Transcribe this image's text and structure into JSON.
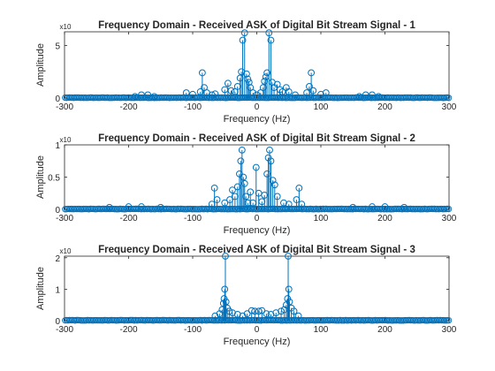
{
  "figure": {
    "background": "#ffffff",
    "plot_color": "#0072bd",
    "axis_color": "#262626"
  },
  "chart_data": [
    {
      "type": "stem",
      "title": "Frequency Domain - Received ASK of Digital Bit Stream Signal - 1",
      "xlabel": "Frequency (Hz)",
      "ylabel": "Amplitude",
      "y_exponent_label": "x10",
      "xlim": [
        -300,
        300
      ],
      "ylim": [
        0,
        6.3
      ],
      "xticks": [
        -300,
        -200,
        -100,
        0,
        100,
        200,
        300
      ],
      "yticks": [
        0,
        5
      ],
      "peaks": [
        {
          "x": -190,
          "y": 0.15
        },
        {
          "x": -180,
          "y": 0.3
        },
        {
          "x": -170,
          "y": 0.3
        },
        {
          "x": -160,
          "y": 0.15
        },
        {
          "x": -110,
          "y": 0.5
        },
        {
          "x": -100,
          "y": 0.35
        },
        {
          "x": -88,
          "y": 0.6
        },
        {
          "x": -85,
          "y": 2.4
        },
        {
          "x": -82,
          "y": 1.0
        },
        {
          "x": -78,
          "y": 0.5
        },
        {
          "x": -70,
          "y": 0.3
        },
        {
          "x": -65,
          "y": 0.4
        },
        {
          "x": -50,
          "y": 0.8
        },
        {
          "x": -45,
          "y": 1.4
        },
        {
          "x": -40,
          "y": 0.7
        },
        {
          "x": -34,
          "y": 0.6
        },
        {
          "x": -30,
          "y": 1.1
        },
        {
          "x": -26,
          "y": 1.9
        },
        {
          "x": -24,
          "y": 2.5
        },
        {
          "x": -22,
          "y": 5.5
        },
        {
          "x": -19,
          "y": 6.2
        },
        {
          "x": -16,
          "y": 2.3
        },
        {
          "x": -14,
          "y": 1.8
        },
        {
          "x": -12,
          "y": 1.5
        },
        {
          "x": -10,
          "y": 1.0
        },
        {
          "x": -6,
          "y": 0.5
        },
        {
          "x": 0,
          "y": 0.3
        },
        {
          "x": 6,
          "y": 0.5
        },
        {
          "x": 10,
          "y": 1.0
        },
        {
          "x": 12,
          "y": 1.6
        },
        {
          "x": 14,
          "y": 2.0
        },
        {
          "x": 16,
          "y": 2.4
        },
        {
          "x": 19,
          "y": 6.2
        },
        {
          "x": 22,
          "y": 5.5
        },
        {
          "x": 24,
          "y": 1.5
        },
        {
          "x": 27,
          "y": 1.0
        },
        {
          "x": 32,
          "y": 1.3
        },
        {
          "x": 36,
          "y": 0.8
        },
        {
          "x": 40,
          "y": 0.6
        },
        {
          "x": 46,
          "y": 1.0
        },
        {
          "x": 50,
          "y": 0.6
        },
        {
          "x": 60,
          "y": 0.3
        },
        {
          "x": 78,
          "y": 0.5
        },
        {
          "x": 82,
          "y": 1.1
        },
        {
          "x": 85,
          "y": 2.4
        },
        {
          "x": 88,
          "y": 0.7
        },
        {
          "x": 100,
          "y": 0.35
        },
        {
          "x": 108,
          "y": 0.5
        },
        {
          "x": 160,
          "y": 0.15
        },
        {
          "x": 170,
          "y": 0.3
        },
        {
          "x": 180,
          "y": 0.3
        },
        {
          "x": 190,
          "y": 0.15
        }
      ]
    },
    {
      "type": "stem",
      "title": "Frequency Domain - Received ASK of Digital Bit Stream Signal - 2",
      "xlabel": "Frequency (Hz)",
      "ylabel": "Amplitude",
      "y_exponent_label": "x10",
      "xlim": [
        -300,
        300
      ],
      "ylim": [
        0,
        1.0
      ],
      "xticks": [
        -300,
        -200,
        -100,
        0,
        100,
        200,
        300
      ],
      "yticks": [
        0,
        0.5,
        1
      ],
      "peaks": [
        {
          "x": -230,
          "y": 0.03
        },
        {
          "x": -200,
          "y": 0.04
        },
        {
          "x": -180,
          "y": 0.04
        },
        {
          "x": -150,
          "y": 0.03
        },
        {
          "x": -70,
          "y": 0.08
        },
        {
          "x": -66,
          "y": 0.33
        },
        {
          "x": -62,
          "y": 0.15
        },
        {
          "x": -50,
          "y": 0.1
        },
        {
          "x": -42,
          "y": 0.15
        },
        {
          "x": -38,
          "y": 0.3
        },
        {
          "x": -34,
          "y": 0.2
        },
        {
          "x": -30,
          "y": 0.35
        },
        {
          "x": -27,
          "y": 0.55
        },
        {
          "x": -25,
          "y": 0.75
        },
        {
          "x": -23,
          "y": 0.92
        },
        {
          "x": -21,
          "y": 0.5
        },
        {
          "x": -19,
          "y": 0.4
        },
        {
          "x": -17,
          "y": 0.2
        },
        {
          "x": -14,
          "y": 0.1
        },
        {
          "x": -10,
          "y": 0.27
        },
        {
          "x": -6,
          "y": 0.1
        },
        {
          "x": -1,
          "y": 0.65
        },
        {
          "x": 3,
          "y": 0.25
        },
        {
          "x": 8,
          "y": 0.12
        },
        {
          "x": 12,
          "y": 0.22
        },
        {
          "x": 16,
          "y": 0.55
        },
        {
          "x": 18,
          "y": 0.8
        },
        {
          "x": 20,
          "y": 0.92
        },
        {
          "x": 22,
          "y": 0.75
        },
        {
          "x": 25,
          "y": 0.45
        },
        {
          "x": 28,
          "y": 0.38
        },
        {
          "x": 32,
          "y": 0.2
        },
        {
          "x": 42,
          "y": 0.1
        },
        {
          "x": 50,
          "y": 0.08
        },
        {
          "x": 62,
          "y": 0.15
        },
        {
          "x": 66,
          "y": 0.33
        },
        {
          "x": 70,
          "y": 0.08
        },
        {
          "x": 150,
          "y": 0.03
        },
        {
          "x": 180,
          "y": 0.04
        },
        {
          "x": 200,
          "y": 0.04
        },
        {
          "x": 230,
          "y": 0.03
        }
      ]
    },
    {
      "type": "stem",
      "title": "Frequency Domain - Received ASK of Digital Bit Stream Signal - 3",
      "xlabel": "Frequency (Hz)",
      "ylabel": "Amplitude",
      "y_exponent_label": "x10",
      "xlim": [
        -300,
        300
      ],
      "ylim": [
        0,
        2.05
      ],
      "xticks": [
        -300,
        -200,
        -100,
        0,
        100,
        200,
        300
      ],
      "yticks": [
        0,
        1,
        2
      ],
      "peaks": [
        {
          "x": -65,
          "y": 0.15
        },
        {
          "x": -58,
          "y": 0.22
        },
        {
          "x": -54,
          "y": 0.35
        },
        {
          "x": -52,
          "y": 0.55
        },
        {
          "x": -51,
          "y": 0.7
        },
        {
          "x": -50,
          "y": 1.0
        },
        {
          "x": -49,
          "y": 2.05
        },
        {
          "x": -48,
          "y": 0.6
        },
        {
          "x": -46,
          "y": 0.4
        },
        {
          "x": -43,
          "y": 0.3
        },
        {
          "x": -38,
          "y": 0.25
        },
        {
          "x": -30,
          "y": 0.2
        },
        {
          "x": -22,
          "y": 0.15
        },
        {
          "x": -15,
          "y": 0.22
        },
        {
          "x": -8,
          "y": 0.32
        },
        {
          "x": -3,
          "y": 0.3
        },
        {
          "x": 3,
          "y": 0.3
        },
        {
          "x": 8,
          "y": 0.32
        },
        {
          "x": 15,
          "y": 0.22
        },
        {
          "x": 22,
          "y": 0.2
        },
        {
          "x": 30,
          "y": 0.25
        },
        {
          "x": 38,
          "y": 0.3
        },
        {
          "x": 43,
          "y": 0.35
        },
        {
          "x": 46,
          "y": 0.5
        },
        {
          "x": 48,
          "y": 0.7
        },
        {
          "x": 49,
          "y": 2.05
        },
        {
          "x": 50,
          "y": 1.0
        },
        {
          "x": 51,
          "y": 0.6
        },
        {
          "x": 54,
          "y": 0.4
        },
        {
          "x": 58,
          "y": 0.3
        },
        {
          "x": 65,
          "y": 0.15
        }
      ]
    }
  ]
}
